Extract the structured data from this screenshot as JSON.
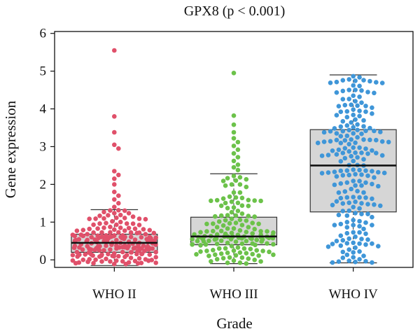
{
  "chart_data": {
    "type": "box-swarm",
    "title": "GPX8 (p < 0.001)",
    "xlabel": "Grade",
    "ylabel": "Gene expression",
    "ylim": [
      -0.2,
      6.05
    ],
    "yticks": [
      0,
      1,
      2,
      3,
      4,
      5,
      6
    ],
    "categories": [
      "WHO II",
      "WHO III",
      "WHO IV"
    ],
    "groups": [
      {
        "name": "WHO II",
        "color": "#e0506a",
        "box": {
          "whisker_low": -0.15,
          "q1": 0.2,
          "median": 0.45,
          "q3": 0.68,
          "whisker_high": 1.33
        },
        "outliers": [
          5.55,
          3.8,
          3.38,
          3.05,
          2.95,
          2.35,
          2.25,
          2.15,
          2.0,
          1.8,
          1.7,
          1.6,
          1.5,
          1.4
        ],
        "n_core": 190
      },
      {
        "name": "WHO III",
        "color": "#6cc24a",
        "box": {
          "whisker_low": -0.1,
          "q1": 0.4,
          "median": 0.62,
          "q3": 1.13,
          "whisker_high": 2.28
        },
        "outliers": [
          4.95,
          3.82,
          3.58,
          3.38,
          3.22,
          3.12,
          3.02,
          2.92,
          2.82,
          2.72,
          2.62,
          2.52,
          2.45,
          2.38
        ],
        "n_core": 150
      },
      {
        "name": "WHO IV",
        "color": "#3f96d8",
        "box": {
          "whisker_low": -0.08,
          "q1": 1.27,
          "median": 2.5,
          "q3": 3.45,
          "whisker_high": 4.9
        },
        "outliers": [],
        "n_core": 210
      }
    ],
    "box_fill": "#d6d6d6",
    "box_stroke": "#333333",
    "grid": false
  }
}
